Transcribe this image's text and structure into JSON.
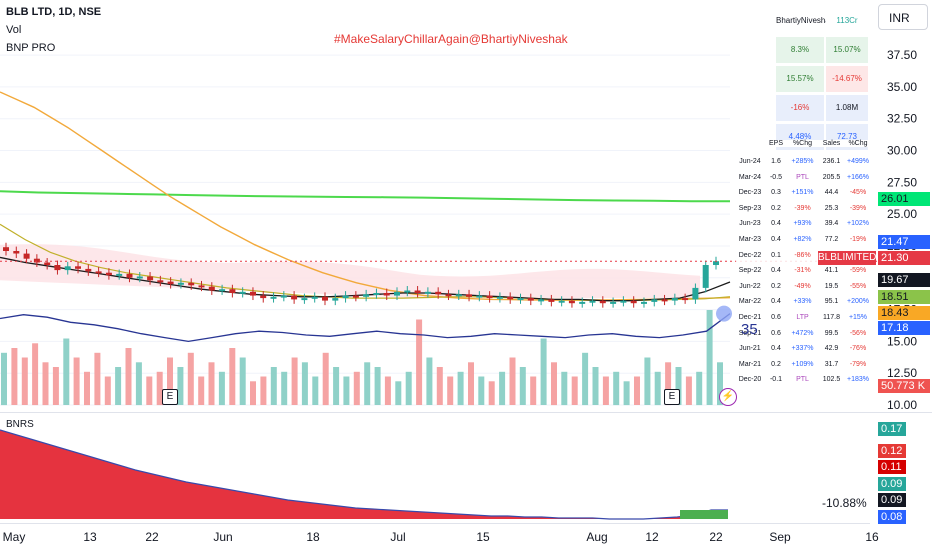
{
  "header": {
    "symbol": "BLB LTD, 1D, NSE",
    "vol_label": "Vol",
    "indicator": "BNP PRO"
  },
  "watermark": "#MakeSalaryChillarAgain@BhartiyNiveshak",
  "currency_button": "INR",
  "oscillator": {
    "label": "BNRS",
    "readout": "-10.88%"
  },
  "fund_table": {
    "rows": [
      {
        "a": "BhartiyNiveshak",
        "b": "113Cr",
        "bg_a": "#ffffff",
        "bg_b": "#ffffff",
        "col_b": "#26a69a"
      },
      {
        "a": "8.3%",
        "b": "15.07%",
        "bg_a": "#e6f4ea",
        "bg_b": "#e6f4ea",
        "col_a": "#2e7d32",
        "col_b": "#2e7d32"
      },
      {
        "a": "15.57%",
        "b": "-14.67%",
        "bg_a": "#e6f4ea",
        "bg_b": "#fde7e7",
        "col_a": "#2e7d32",
        "col_b": "#e53935"
      },
      {
        "a": "-16%",
        "b": "1.08M",
        "bg_a": "#e8eefb",
        "bg_b": "#e8eefb",
        "col_a": "#e53935",
        "col_b": "#131722"
      },
      {
        "a": "4.48%",
        "b": "72.73",
        "bg_a": "#e8eefb",
        "bg_b": "#e8eefb",
        "col_a": "#2962ff",
        "col_b": "#2962ff"
      }
    ]
  },
  "qtr_table": {
    "headers": [
      "EPS",
      "%Chg",
      "Sales",
      "%Chg"
    ],
    "rows": [
      [
        "Jun-24",
        "1.6",
        "+285%",
        "236.1",
        "+499%"
      ],
      [
        "Mar-24",
        "-0.5",
        "PTL",
        "205.5",
        "+166%"
      ],
      [
        "Dec-23",
        "0.3",
        "+151%",
        "44.4",
        "-45%"
      ],
      [
        "Sep-23",
        "0.2",
        "-39%",
        "25.3",
        "-39%"
      ],
      [
        "Jun-23",
        "0.4",
        "+93%",
        "39.4",
        "+102%"
      ],
      [
        "Mar-23",
        "0.4",
        "+82%",
        "77.2",
        "-19%"
      ],
      [
        "Dec-22",
        "0.1",
        "-86%",
        "41.4",
        "-65%"
      ],
      [
        "Sep-22",
        "0.4",
        "-31%",
        "41.1",
        "-59%"
      ],
      [
        "Jun-22",
        "0.2",
        "-49%",
        "19.5",
        "-55%"
      ],
      [
        "Mar-22",
        "0.4",
        "+33%",
        "95.1",
        "+200%"
      ],
      [
        "Dec-21",
        "0.6",
        "LTP",
        "117.8",
        "+15%"
      ],
      [
        "Sep-21",
        "0.6",
        "+472%",
        "99.5",
        "-56%"
      ],
      [
        "Jun-21",
        "0.4",
        "+337%",
        "42.9",
        "-76%"
      ],
      [
        "Mar-21",
        "0.2",
        "+109%",
        "31.7",
        "-79%"
      ],
      [
        "Dec-20",
        "-0.1",
        "PTL",
        "102.5",
        "+183%"
      ]
    ]
  },
  "price_tags": [
    {
      "text": "26.01",
      "value": 26.01,
      "bg": "#00e676",
      "fg": "#131722"
    },
    {
      "text": "21.47",
      "value": 21.47,
      "bg": "#2962ff",
      "fg": "#ffffff"
    },
    {
      "text": "21.30",
      "value": 21.3,
      "bg": "#e53945",
      "fg": "#ffffff",
      "label": "BLBLIMITED"
    },
    {
      "text": "19.67",
      "value": 19.67,
      "bg": "#131722",
      "fg": "#ffffff"
    },
    {
      "text": "18.51",
      "value": 18.51,
      "bg": "#8bc34a",
      "fg": "#131722"
    },
    {
      "text": "18.43",
      "value": 18.43,
      "bg": "#f9a825",
      "fg": "#131722"
    },
    {
      "text": "17.18",
      "value": 17.18,
      "bg": "#2962ff",
      "fg": "#ffffff"
    },
    {
      "text": "50.773 K",
      "value": null,
      "bg": "#ef5350",
      "fg": "#ffffff"
    }
  ],
  "osc_tags": [
    {
      "text": "0.17",
      "bg": "#26a69a"
    },
    {
      "text": "0.12",
      "bg": "#e53935"
    },
    {
      "text": "0.11",
      "bg": "#d50000"
    },
    {
      "text": "0.09",
      "bg": "#26a69a"
    },
    {
      "text": "0.09",
      "bg": "#131722"
    },
    {
      "text": "0.08",
      "bg": "#2962ff"
    }
  ],
  "markers": {
    "earnings": "E",
    "bolt": "⚡",
    "count": "35"
  },
  "chart_data": {
    "type": "candlestick",
    "price_axis": {
      "ticks": [
        37.5,
        35.0,
        32.5,
        30.0,
        27.5,
        25.0,
        22.5,
        20.0,
        17.5,
        15.0,
        12.5,
        10.0
      ],
      "range": [
        10,
        39
      ]
    },
    "time_axis": {
      "ticks": [
        "May",
        "13",
        "22",
        "Jun",
        "18",
        "Jul",
        "15",
        "Aug",
        "12",
        "22",
        "Sep",
        "16"
      ]
    },
    "series": {
      "close": [
        22.1,
        21.9,
        21.5,
        21.2,
        21.0,
        20.6,
        20.9,
        20.7,
        20.5,
        20.4,
        20.2,
        20.3,
        20.0,
        20.1,
        19.8,
        19.7,
        19.5,
        19.6,
        19.4,
        19.3,
        19.0,
        19.1,
        18.8,
        18.9,
        18.6,
        18.4,
        18.5,
        18.6,
        18.3,
        18.4,
        18.5,
        18.2,
        18.4,
        18.6,
        18.5,
        18.7,
        18.8,
        18.6,
        18.9,
        19.0,
        18.8,
        18.9,
        18.7,
        18.6,
        18.7,
        18.5,
        18.6,
        18.4,
        18.5,
        18.3,
        18.4,
        18.2,
        18.3,
        18.1,
        18.2,
        18.0,
        18.1,
        18.2,
        18.0,
        18.1,
        18.2,
        18.0,
        18.1,
        18.3,
        18.2,
        18.4,
        18.3,
        19.2,
        21.0,
        21.3
      ],
      "green_line": [
        26.8,
        26.7,
        26.65,
        26.6,
        26.55,
        26.5,
        26.45,
        26.4,
        26.38,
        26.35,
        26.33,
        26.3,
        26.25,
        26.2,
        26.15,
        26.1,
        26.07,
        26.05,
        26.02,
        26.01
      ],
      "ma_orange": [
        34.6,
        34.0,
        33.4,
        32.6,
        31.8,
        30.9,
        30.0,
        29.1,
        28.2,
        27.3,
        26.4,
        25.6,
        24.8,
        24.0,
        23.3,
        22.6,
        22.0,
        21.4,
        20.9,
        20.4,
        20.0,
        19.6,
        19.3,
        19.0,
        18.8,
        18.6,
        18.5,
        18.4,
        18.35,
        18.3,
        18.28,
        18.26,
        18.25,
        18.24,
        18.24,
        18.25,
        18.26,
        18.28,
        18.3,
        18.32,
        18.35,
        18.38,
        18.4,
        18.43
      ],
      "ma_yellow": [
        24.2,
        23.0,
        22.0,
        21.3,
        20.8,
        20.4,
        20.1,
        19.8,
        19.5,
        19.2,
        19.0,
        18.8,
        18.6,
        18.5,
        18.4,
        18.4,
        18.4,
        18.45,
        18.5,
        18.5,
        18.45,
        18.4,
        18.3,
        18.25,
        18.2,
        18.2,
        18.25,
        18.3,
        18.35,
        18.51
      ],
      "ma_black": [
        21.6,
        21.2,
        20.9,
        20.6,
        20.3,
        20.0,
        19.7,
        19.4,
        19.1,
        18.9,
        18.7,
        18.6,
        18.5,
        18.5,
        18.6,
        18.7,
        18.8,
        18.8,
        18.7,
        18.6,
        18.5,
        18.4,
        18.3,
        18.3,
        18.2,
        18.2,
        18.3,
        18.4,
        18.9,
        19.67
      ],
      "blue_line": [
        16.8,
        17.1,
        16.9,
        16.5,
        16.3,
        16.0,
        15.6,
        15.3,
        15.0,
        15.3,
        15.6,
        15.8,
        15.7,
        15.5,
        15.4,
        15.6,
        15.8,
        15.6,
        15.5,
        15.3,
        15.4,
        15.6,
        15.5,
        15.4,
        15.3,
        15.5,
        15.6,
        15.4,
        15.3,
        15.5,
        15.8,
        17.18
      ],
      "volume": [
        0.55,
        0.6,
        0.5,
        0.65,
        0.45,
        0.4,
        0.7,
        0.5,
        0.35,
        0.55,
        0.3,
        0.4,
        0.6,
        0.45,
        0.3,
        0.35,
        0.5,
        0.4,
        0.55,
        0.3,
        0.45,
        0.35,
        0.6,
        0.5,
        0.25,
        0.3,
        0.4,
        0.35,
        0.5,
        0.45,
        0.3,
        0.55,
        0.4,
        0.3,
        0.35,
        0.45,
        0.4,
        0.3,
        0.25,
        0.35,
        0.9,
        0.5,
        0.4,
        0.3,
        0.35,
        0.45,
        0.3,
        0.25,
        0.35,
        0.5,
        0.4,
        0.3,
        0.7,
        0.45,
        0.35,
        0.3,
        0.55,
        0.4,
        0.3,
        0.35,
        0.25,
        0.3,
        0.5,
        0.35,
        0.45,
        0.4,
        0.3,
        0.35,
        1.0,
        0.45
      ],
      "bnrs": [
        0.17,
        0.165,
        0.16,
        0.155,
        0.15,
        0.145,
        0.14,
        0.135,
        0.13,
        0.126,
        0.122,
        0.118,
        0.115,
        0.112,
        0.109,
        0.106,
        0.103,
        0.1,
        0.098,
        0.096,
        0.094,
        0.092,
        0.091,
        0.09,
        0.089,
        0.088,
        0.087,
        0.086,
        0.085,
        0.084,
        0.084,
        0.083,
        0.083,
        0.082,
        0.082,
        0.082,
        0.081,
        0.081,
        0.081,
        0.082,
        0.083,
        0.085,
        0.09,
        0.09
      ]
    }
  }
}
